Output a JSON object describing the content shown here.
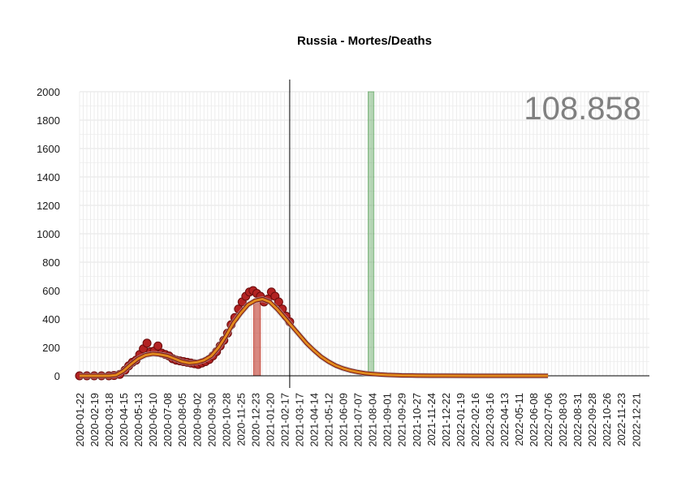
{
  "chart_data": {
    "type": "line",
    "title": "Russia - Mortes/Deaths",
    "total_label": "108.858",
    "ylim": [
      0,
      2000
    ],
    "y_ticks": [
      0,
      200,
      400,
      600,
      800,
      1000,
      1200,
      1400,
      1600,
      1800,
      2000
    ],
    "x_range": [
      "2020-01-22",
      "2023-01-16"
    ],
    "x_tick_labels": [
      "2020-01-22",
      "2020-02-19",
      "2020-03-18",
      "2020-04-15",
      "2020-05-13",
      "2020-06-10",
      "2020-07-08",
      "2020-08-05",
      "2020-09-02",
      "2020-09-30",
      "2020-10-28",
      "2020-11-25",
      "2020-12-23",
      "2021-01-20",
      "2021-02-17",
      "2021-03-17",
      "2021-04-14",
      "2021-05-12",
      "2021-06-09",
      "2021-07-07",
      "2021-08-04",
      "2021-09-01",
      "2021-09-29",
      "2021-10-27",
      "2021-11-24",
      "2021-12-22",
      "2022-01-19",
      "2022-02-16",
      "2022-03-16",
      "2022-04-13",
      "2022-05-11",
      "2022-06-08",
      "2022-07-06",
      "2022-08-03",
      "2022-08-31",
      "2022-09-28",
      "2022-10-26",
      "2022-11-23",
      "2022-12-21"
    ],
    "grid": true,
    "vertical_line_date": "2021-02-27",
    "peak_band": {
      "start": "2020-12-20",
      "end": "2021-01-02",
      "value": 540,
      "color": "#c0392b"
    },
    "highlight_band": {
      "start": "2021-07-27",
      "end": "2021-08-07",
      "value": 2000,
      "color": "#4a9a4a"
    },
    "series": [
      {
        "style": "observed-points",
        "color": "#b22222",
        "x": [
          "2020-01-22",
          "2020-02-05",
          "2020-02-19",
          "2020-03-04",
          "2020-03-18",
          "2020-03-28",
          "2020-04-08",
          "2020-04-18",
          "2020-04-25",
          "2020-05-02",
          "2020-05-09",
          "2020-05-16",
          "2020-05-23",
          "2020-05-30",
          "2020-06-06",
          "2020-06-13",
          "2020-06-20",
          "2020-06-27",
          "2020-07-04",
          "2020-07-11",
          "2020-07-18",
          "2020-07-25",
          "2020-08-01",
          "2020-08-08",
          "2020-08-15",
          "2020-08-22",
          "2020-08-29",
          "2020-09-05",
          "2020-09-12",
          "2020-09-19",
          "2020-09-26",
          "2020-10-03",
          "2020-10-10",
          "2020-10-17",
          "2020-10-24",
          "2020-10-31",
          "2020-11-07",
          "2020-11-14",
          "2020-11-21",
          "2020-11-28",
          "2020-12-05",
          "2020-12-12",
          "2020-12-19",
          "2020-12-26",
          "2021-01-02",
          "2021-01-09",
          "2021-01-16",
          "2021-01-23",
          "2021-01-30",
          "2021-02-06",
          "2021-02-13",
          "2021-02-20",
          "2021-02-27"
        ],
        "y": [
          0,
          0,
          0,
          0,
          0,
          2,
          10,
          40,
          70,
          95,
          110,
          150,
          190,
          230,
          170,
          175,
          210,
          160,
          150,
          140,
          120,
          110,
          105,
          100,
          95,
          90,
          85,
          80,
          90,
          100,
          115,
          140,
          170,
          210,
          250,
          300,
          360,
          410,
          470,
          520,
          560,
          590,
          600,
          580,
          560,
          520,
          540,
          590,
          560,
          520,
          470,
          420,
          380
        ]
      },
      {
        "style": "fitted-curve",
        "color": "#e08a1e",
        "x": [
          "2020-01-22",
          "2020-03-18",
          "2020-04-01",
          "2020-04-15",
          "2020-04-29",
          "2020-05-13",
          "2020-05-27",
          "2020-06-10",
          "2020-06-24",
          "2020-07-08",
          "2020-07-22",
          "2020-08-05",
          "2020-08-19",
          "2020-09-02",
          "2020-09-16",
          "2020-09-30",
          "2020-10-14",
          "2020-10-28",
          "2020-11-11",
          "2020-11-25",
          "2020-12-09",
          "2020-12-23",
          "2021-01-06",
          "2021-01-20",
          "2021-02-03",
          "2021-02-17",
          "2021-03-03",
          "2021-03-17",
          "2021-03-31",
          "2021-04-14",
          "2021-04-28",
          "2021-05-12",
          "2021-05-26",
          "2021-06-09",
          "2021-06-23",
          "2021-07-07",
          "2021-07-21",
          "2021-08-04",
          "2021-08-18",
          "2021-09-01",
          "2021-09-29",
          "2021-10-27",
          "2021-11-24",
          "2021-12-22",
          "2022-02-16",
          "2022-04-13",
          "2022-06-08",
          "2022-07-06"
        ],
        "y": [
          0,
          0,
          5,
          35,
          80,
          120,
          145,
          155,
          150,
          140,
          120,
          100,
          90,
          95,
          110,
          140,
          200,
          280,
          370,
          440,
          500,
          530,
          540,
          520,
          470,
          410,
          350,
          290,
          230,
          180,
          135,
          100,
          72,
          52,
          37,
          26,
          18,
          13,
          9,
          6,
          3,
          1.5,
          0.8,
          0.4,
          0.1,
          0,
          0,
          0
        ]
      }
    ]
  }
}
